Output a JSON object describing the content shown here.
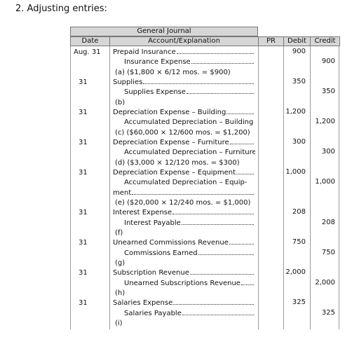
{
  "heading": "2. Adjusting entries:",
  "journal": {
    "title": "General Journal",
    "columns": [
      "Date",
      "Account/Explanation",
      "PR",
      "Debit",
      "Credit"
    ],
    "entries": [
      {
        "date": "Aug. 31",
        "debit_account": "Prepaid Insurance",
        "debit": "900",
        "credit_account": "Insurance Expense",
        "credit": "900",
        "explanation": "(a) ($1,800 × 6/12 mos. = $900)"
      },
      {
        "date": "31",
        "debit_account": "Supplies",
        "debit": "350",
        "credit_account": "Supplies Expense",
        "credit": "350",
        "explanation": "(b)"
      },
      {
        "date": "31",
        "debit_account": "Depreciation Expense – Building",
        "debit": "1,200",
        "credit_account": "Accumulated Depreciation – Building",
        "credit": "1,200",
        "explanation": "(c) ($60,000 × 12/600 mos. = $1,200)"
      },
      {
        "date": "31",
        "debit_account": "Depreciation Expense – Furniture",
        "debit": "300",
        "credit_account": "Accumulated Depreciation – Furniture",
        "credit": "300",
        "explanation": "(d) ($3,000 × 12/120 mos. = $300)"
      },
      {
        "date": "31",
        "debit_account": "Depreciation Expense – Equipment",
        "debit": "1,000",
        "credit_account": "Accumulated Depreciation – Equip-",
        "credit_account_cont": "ment",
        "credit": "1,000",
        "explanation": "(e) ($20,000 × 12/240 mos. = $1,000)"
      },
      {
        "date": "31",
        "debit_account": "Interest Expense",
        "debit": "208",
        "credit_account": "Interest Payable",
        "credit": "208",
        "explanation": "(f)"
      },
      {
        "date": "31",
        "debit_account": "Unearned Commissions Revenue",
        "debit": "750",
        "credit_account": "Commissions Earned",
        "credit": "750",
        "explanation": "(g)"
      },
      {
        "date": "31",
        "debit_account": "Subscription Revenue",
        "debit": "2,000",
        "credit_account": "Unearned Subscriptions Revenue",
        "credit": "2,000",
        "explanation": "(h)"
      },
      {
        "date": "31",
        "debit_account": "Salaries Expense",
        "debit": "325",
        "credit_account": "Salaries Payable",
        "credit": "325",
        "explanation": "(i)"
      }
    ]
  }
}
